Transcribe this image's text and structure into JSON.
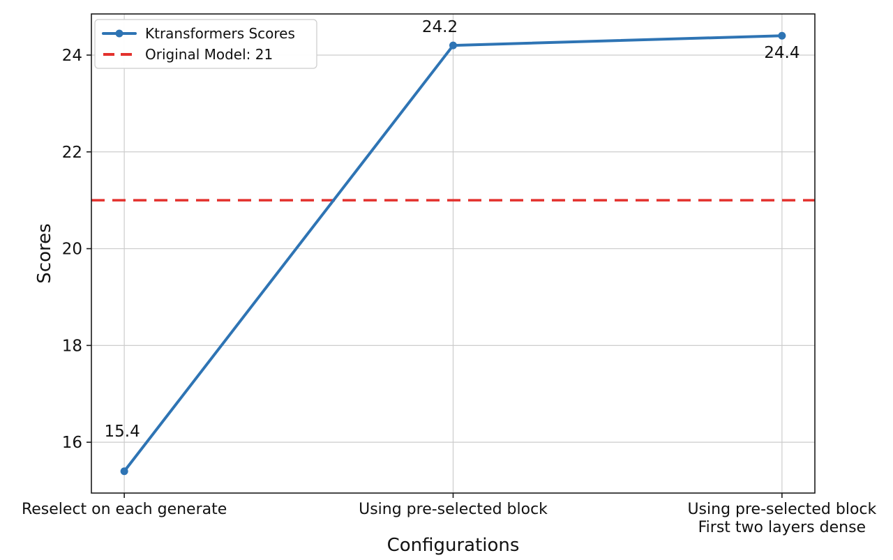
{
  "chart_data": {
    "type": "line",
    "title": "",
    "xlabel": "Configurations",
    "ylabel": "Scores",
    "categories": [
      "Reselect on each generate",
      "Using pre-selected block",
      "Using pre-selected block\nFirst two layers dense"
    ],
    "series": [
      {
        "name": "Ktransformers Scores",
        "values": [
          15.4,
          24.2,
          24.4
        ],
        "color": "#2e74b4",
        "marker": "circle",
        "line_style": "solid"
      }
    ],
    "reference_line": {
      "name": "Original Model: 21",
      "value": 21,
      "color": "#e3312d",
      "line_style": "dashed"
    },
    "data_labels": [
      "15.4",
      "24.2",
      "24.4"
    ],
    "yticks": [
      16,
      18,
      20,
      22,
      24
    ],
    "ylim": [
      14.95,
      24.85
    ],
    "grid": true,
    "legend": {
      "position": "upper-left",
      "entries": [
        "Ktransformers Scores",
        "Original Model: 21"
      ]
    },
    "colors": {
      "background": "#ffffff",
      "grid": "#cccccc",
      "spine": "#1a1a1a",
      "text": "#111111",
      "series": "#2e74b4",
      "reference": "#e3312d",
      "legend_border": "#cccccc",
      "legend_fill": "#ffffff"
    }
  }
}
